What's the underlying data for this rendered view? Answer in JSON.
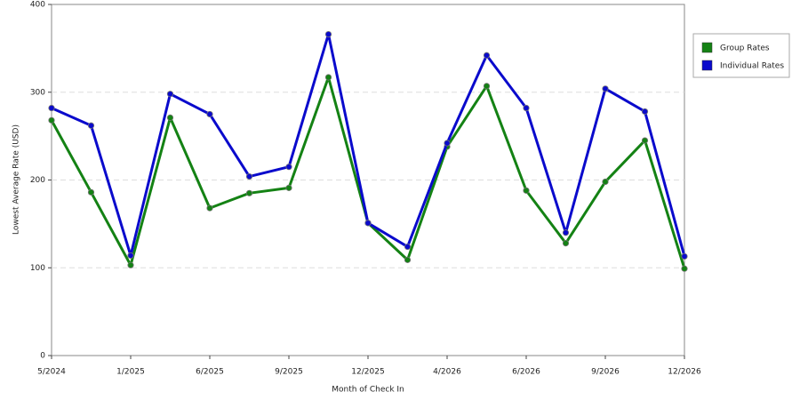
{
  "chart_data": {
    "type": "line",
    "x_label": "Month of Check In",
    "y_label": "Lowest Average Rate (USD)",
    "categories": [
      "5/2024",
      null,
      "1/2025",
      null,
      "6/2025",
      null,
      "9/2025",
      null,
      "12/2025",
      null,
      "4/2026",
      null,
      "6/2026",
      null,
      "9/2026",
      null,
      "12/2026"
    ],
    "series": [
      {
        "name": "Group Rates",
        "color": "#148214",
        "values": [
          268,
          186,
          103,
          271,
          168,
          185,
          191,
          317,
          151,
          109,
          238,
          307,
          188,
          128,
          198,
          245,
          99
        ]
      },
      {
        "name": "Individual Rates",
        "color": "#0a0acc",
        "values": [
          282,
          262,
          114,
          298,
          275,
          204,
          215,
          366,
          151,
          124,
          242,
          342,
          282,
          140,
          304,
          278,
          113
        ]
      }
    ],
    "ylim": [
      0,
      400
    ],
    "yticks": [
      0,
      100,
      200,
      300,
      400
    ],
    "grid": true,
    "legend": "right"
  }
}
